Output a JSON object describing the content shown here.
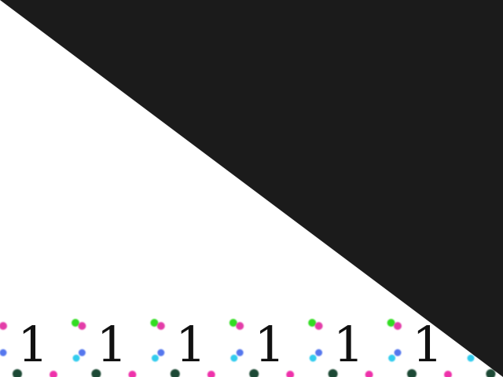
{
  "scene": {
    "background_color": "#ffffff",
    "overlay_color": "#1b1b1b",
    "stripe_colors": [
      "#0a0aee",
      "#ee0a0a"
    ],
    "stripe_count": 10,
    "glyph_row": {
      "glyph": "1",
      "count": 6,
      "color": "#111111"
    },
    "dot_row_1_colors": [
      "#e33ea8",
      "#33dd22"
    ],
    "dot_row_2_colors": [
      "#5577ee",
      "#33ccee"
    ],
    "dot_row_3_colors": [
      "#1f4a34",
      "#ee33aa"
    ]
  }
}
